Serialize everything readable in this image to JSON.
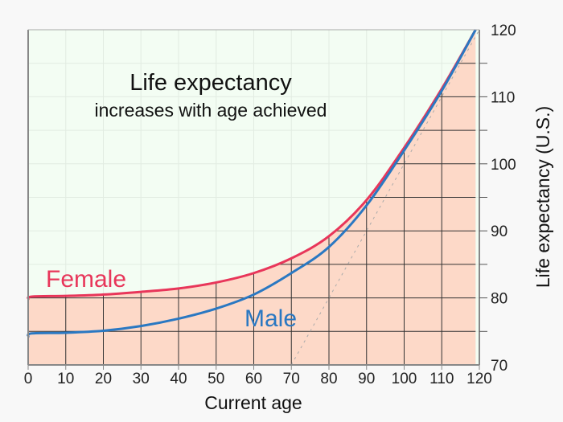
{
  "chart_data": {
    "type": "line",
    "title": "Life expectancy",
    "subtitle": "increases with age achieved",
    "xlabel": "Current age",
    "ylabel": "Life expectancy (U.S.)",
    "xlim": [
      0,
      120
    ],
    "ylim": [
      70,
      120
    ],
    "xticks": [
      0,
      10,
      20,
      30,
      40,
      50,
      60,
      70,
      80,
      90,
      100,
      110,
      120
    ],
    "yticks": [
      70,
      80,
      90,
      100,
      110,
      120
    ],
    "grid": true,
    "reference_line": {
      "style": "dotted",
      "from": [
        70,
        70
      ],
      "to": [
        120,
        120
      ]
    },
    "series": [
      {
        "name": "Female",
        "color": "#e8365a",
        "fill": "#fdd9c8",
        "x": [
          0,
          1,
          10,
          20,
          30,
          40,
          50,
          60,
          70,
          80,
          90,
          100,
          110,
          119
        ],
        "y": [
          79.8,
          80.2,
          80.3,
          80.5,
          80.9,
          81.4,
          82.3,
          83.7,
          85.9,
          89.2,
          94.6,
          102.4,
          111.2,
          120
        ]
      },
      {
        "name": "Male",
        "color": "#2a78c2",
        "fill": "#dcecfc",
        "x": [
          0,
          1,
          10,
          20,
          30,
          40,
          50,
          60,
          70,
          80,
          90,
          100,
          110,
          119
        ],
        "y": [
          74.2,
          74.7,
          74.8,
          75.1,
          75.8,
          76.9,
          78.4,
          80.5,
          83.7,
          87.6,
          93.8,
          102.0,
          110.9,
          120
        ]
      }
    ],
    "colors": {
      "background_above": "#f3fdf3",
      "page": "#f8f8f8"
    }
  }
}
